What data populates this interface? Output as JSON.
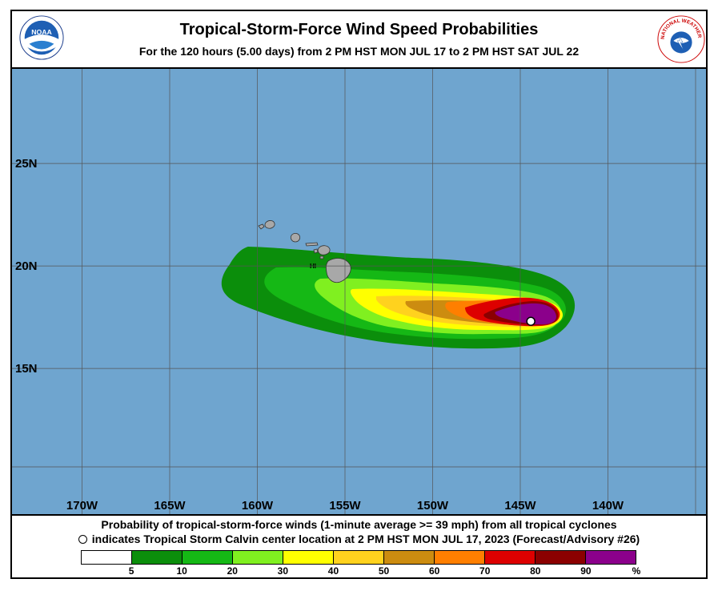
{
  "header": {
    "title": "Tropical-Storm-Force Wind Speed Probabilities",
    "subtitle": "For the 120 hours (5.00 days) from 2 PM HST MON JUL 17 to 2 PM HST SAT JUL 22",
    "left_logo": {
      "icon": "noaa-logo-icon",
      "text": "NOAA"
    },
    "right_logo": {
      "icon": "nws-logo-icon",
      "text": "NATIONAL WEATHER SERVICE"
    }
  },
  "map": {
    "ocean_color": "#6fa5cf",
    "land_color": "#a8a8a8",
    "latitude_labels": [
      "25N",
      "20N",
      "15N"
    ],
    "longitude_labels": [
      "170W",
      "165W",
      "160W",
      "155W",
      "150W",
      "145W",
      "140W"
    ],
    "region_label": "HI",
    "storm_marker": {
      "name": "Tropical Storm Calvin",
      "lon": -144.4,
      "lat": 17.3
    }
  },
  "footer": {
    "caption_line1": "Probability of tropical-storm-force winds (1-minute average >= 39 mph) from all tropical cyclones",
    "caption_line2": "indicates Tropical Storm Calvin center location at 2 PM HST MON JUL 17, 2023 (Forecast/Advisory #26)"
  },
  "legend": {
    "labels": [
      "5",
      "10",
      "20",
      "30",
      "40",
      "50",
      "60",
      "70",
      "80",
      "90",
      "%"
    ],
    "colors": [
      "#ffffff",
      "#0b8e0b",
      "#15b815",
      "#80f020",
      "#ffff00",
      "#ffd21e",
      "#cc8c10",
      "#ff7f00",
      "#dd0000",
      "#8b0000",
      "#8b008b"
    ]
  }
}
